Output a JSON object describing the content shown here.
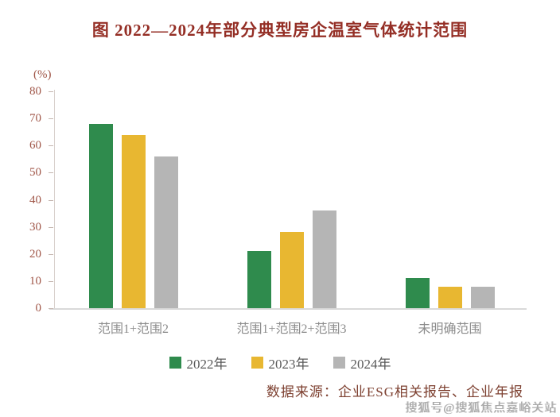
{
  "title": "图  2022—2024年部分典型房企温室气体统计范围",
  "source_note": "数据来源：企业ESG相关报告、企业年报",
  "watermark": "搜狐号@搜狐焦点嘉峪关站",
  "colors": {
    "title_text": "#942e25",
    "axis_tick_text": "#a05648",
    "category_text": "#8c8c8c",
    "legend_text": "#595959",
    "source_text": "#7d4030",
    "watermark_text": "#a8a8a8"
  },
  "chart_data": {
    "type": "bar",
    "title": "图 2022—2024年部分典型房企温室气体统计范围",
    "unit_label": "(%)",
    "categories": [
      "范围1+范围2",
      "范围1+范围2+范围3",
      "未明确范围"
    ],
    "series": [
      {
        "name": "2022年",
        "color": "#2f8b4d",
        "values": [
          68,
          21,
          11
        ]
      },
      {
        "name": "2023年",
        "color": "#e8b731",
        "values": [
          64,
          28,
          8
        ]
      },
      {
        "name": "2024年",
        "color": "#b5b5b5",
        "values": [
          56,
          36,
          8
        ]
      }
    ],
    "xlabel": "",
    "ylabel": "(%)",
    "ylim": [
      0,
      80
    ],
    "yticks": [
      0,
      10,
      20,
      30,
      40,
      50,
      60,
      70,
      80
    ],
    "grid": false,
    "legend_position": "bottom"
  }
}
